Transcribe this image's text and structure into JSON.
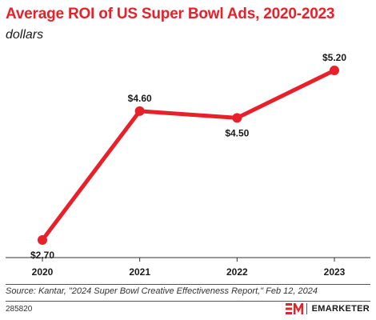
{
  "chart_data": {
    "type": "line",
    "title": "Average ROI of US Super Bowl Ads, 2020-2023",
    "subtitle": "dollars",
    "xlabel": "",
    "ylabel": "",
    "categories": [
      "2020",
      "2021",
      "2022",
      "2023"
    ],
    "series": [
      {
        "values": [
          2.7,
          4.6,
          4.5,
          5.2
        ],
        "data_labels": [
          "$2.70",
          "$4.60",
          "$4.50",
          "$5.20"
        ]
      }
    ],
    "ylim": [
      2.7,
      5.2
    ],
    "grid": false,
    "legend": "none",
    "color": "#e8202a"
  },
  "footer": {
    "source": "Source: Kantar, \"2024 Super Bowl Creative Effectiveness Report,\" Feb 12, 2024",
    "chart_id": "285820",
    "brand": "EMARKETER",
    "brand_mark": "EM"
  }
}
